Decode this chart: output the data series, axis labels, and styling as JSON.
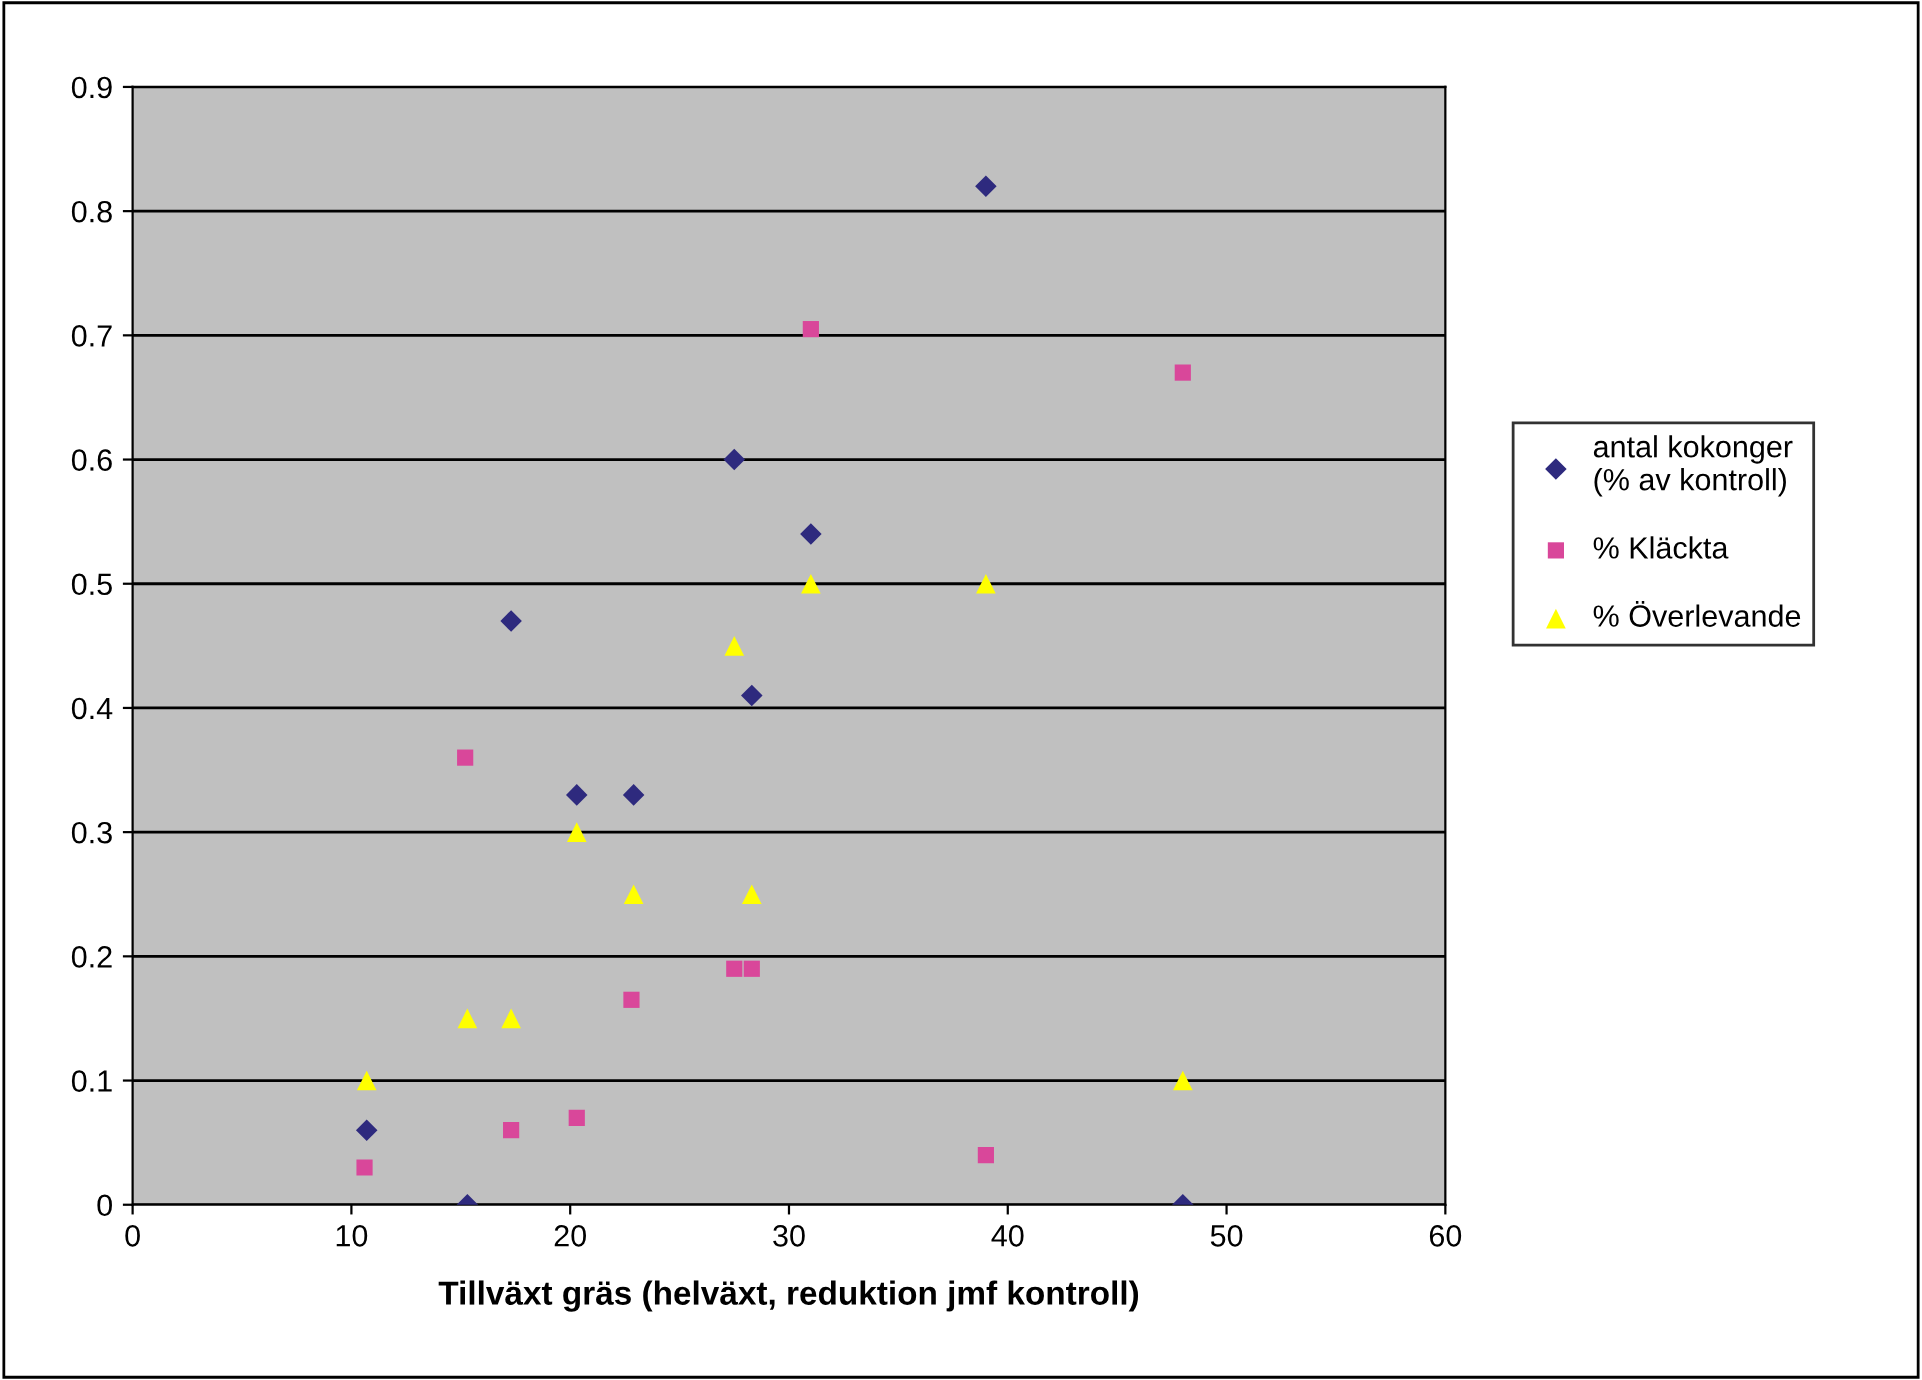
{
  "chart_data": {
    "type": "scatter",
    "xlabel": "Tillväxt gräs (helväxt, reduktion jmf kontroll)",
    "xlim": [
      0,
      60
    ],
    "xticks": [
      0,
      10,
      20,
      30,
      40,
      50,
      60
    ],
    "ylim": [
      0,
      0.9
    ],
    "yticks": [
      0,
      0.1,
      0.2,
      0.3,
      0.4,
      0.5,
      0.6,
      0.7,
      0.8,
      0.9
    ],
    "grid": "y",
    "legend": "right",
    "series": [
      {
        "name": "antal kokonger\n(% av kontroll)",
        "color": "#2e2a7e",
        "marker": "diamond",
        "x": [
          10.7,
          15.3,
          17.3,
          20.3,
          22.9,
          27.5,
          28.3,
          31.0,
          39.0,
          48.0
        ],
        "values": [
          0.06,
          0,
          0.47,
          0.33,
          0.33,
          0.6,
          0.41,
          0.54,
          0.82,
          0
        ]
      },
      {
        "name": "% Kläckta",
        "color": "#d9479a",
        "marker": "square",
        "x": [
          10.6,
          15.2,
          17.3,
          20.3,
          22.8,
          27.5,
          28.3,
          31.0,
          39.0,
          48.0
        ],
        "values": [
          0.03,
          0.36,
          0.06,
          0.07,
          0.165,
          0.19,
          0.19,
          0.705,
          0.04,
          0.67
        ]
      },
      {
        "name": "% Överlevande",
        "color": "#ffff00",
        "marker": "triangle",
        "x": [
          10.7,
          15.3,
          17.3,
          20.3,
          22.9,
          27.5,
          28.3,
          31.0,
          39.0,
          48.0
        ],
        "values": [
          0.1,
          0.15,
          0.15,
          0.3,
          0.25,
          0.45,
          0.25,
          0.5,
          0.5,
          0.1
        ]
      }
    ]
  }
}
